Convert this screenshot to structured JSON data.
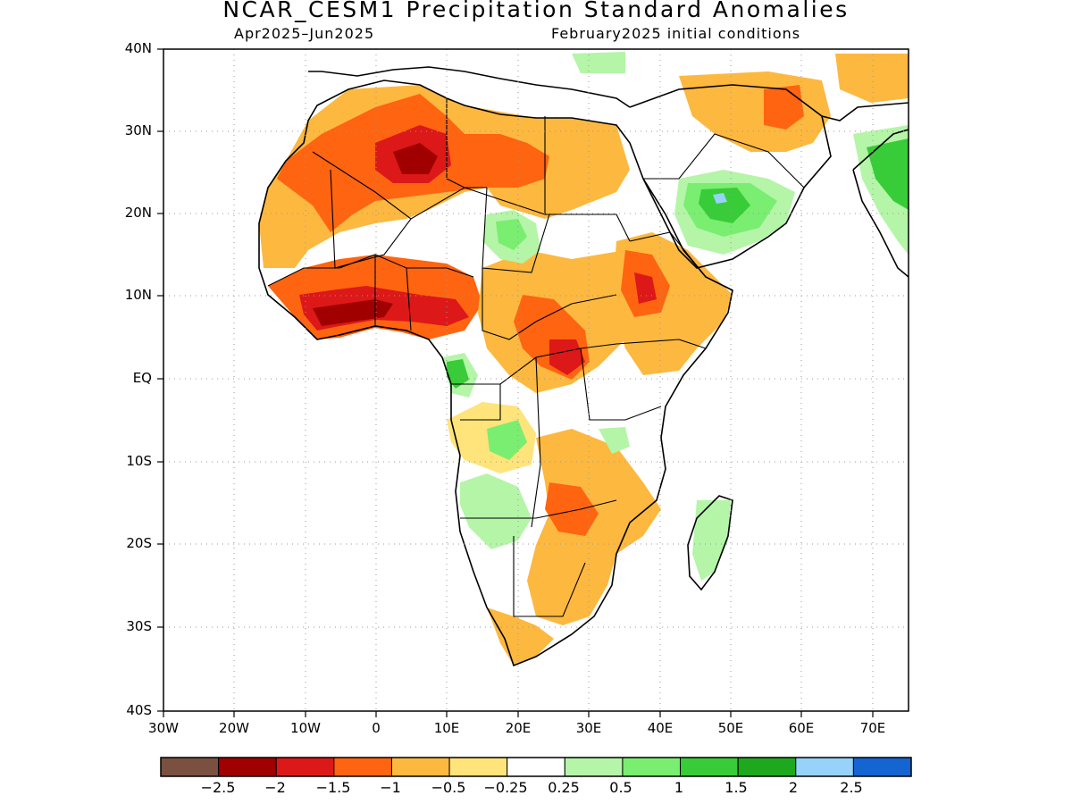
{
  "title": "NCAR_CESM1 Precipitation Standard Anomalies",
  "subtitle_left": "Apr2025–Jun2025",
  "subtitle_right": "February2025 initial conditions",
  "y_axis_labels": [
    "40N",
    "30N",
    "20N",
    "10N",
    "EQ",
    "10S",
    "20S",
    "30S",
    "40S"
  ],
  "x_axis_labels": [
    "30W",
    "20W",
    "10W",
    "0",
    "10E",
    "20E",
    "30E",
    "40E",
    "50E",
    "60E",
    "70E"
  ],
  "grid": "dotted",
  "map_extent": {
    "lon": [
      -30,
      75
    ],
    "lat": [
      -40,
      40
    ]
  },
  "colorbar": {
    "colors": [
      "#7a5040",
      "#a00000",
      "#dd1818",
      "#ff6410",
      "#fdb840",
      "#fee47a",
      "#ffffff",
      "#b4f5a8",
      "#7aee70",
      "#38cc38",
      "#1ea81e",
      "#96d2fa",
      "#1464d2"
    ],
    "labels": [
      "−2.5",
      "−2",
      "−1.5",
      "−1",
      "−0.5",
      "−0.25",
      "0.25",
      "0.5",
      "1",
      "1.5",
      "2",
      "2.5"
    ]
  }
}
